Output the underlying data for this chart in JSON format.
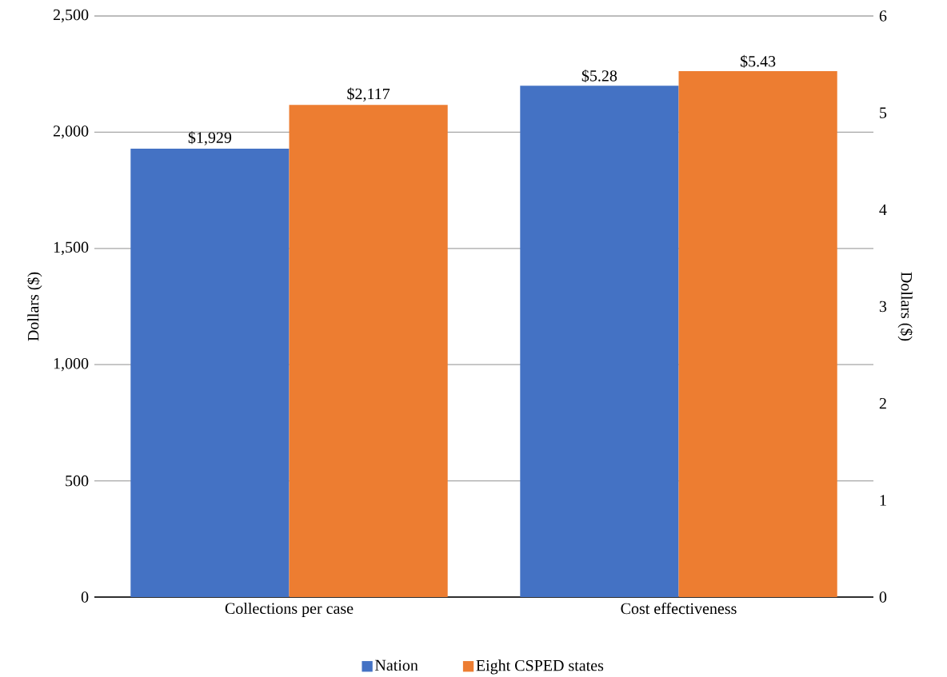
{
  "chart_data": {
    "type": "bar",
    "categories": [
      "Collections per case",
      "Cost effectiveness"
    ],
    "ylabel": "Dollars ($)",
    "y2label": "Dollars ($)",
    "ylim": [
      0,
      2500
    ],
    "yticks": [
      0,
      500,
      {
        "value": 1000,
        "label": "1,000"
      },
      {
        "value": 1500,
        "label": "1,500"
      },
      {
        "value": 2000,
        "label": "2,000"
      },
      {
        "value": 2500,
        "label": "2,500"
      }
    ],
    "y2lim": [
      0,
      6
    ],
    "y2ticks": [
      0,
      1,
      2,
      3,
      4,
      5,
      6
    ],
    "grid": "y",
    "legend": "bottom",
    "series": [
      {
        "name": "Nation",
        "color": "#4472c4",
        "values": [
          1929,
          null
        ],
        "value_labels": [
          "$1,929",
          null
        ]
      },
      {
        "name": "Eight CSPED states",
        "color": "#ed7d31",
        "values": [
          2117,
          null
        ],
        "value_labels": [
          "$2,117",
          null
        ]
      },
      {
        "color": "#4472c4",
        "axis": "y2",
        "values": [
          null,
          5.28
        ],
        "value_labels": [
          null,
          "$5.28"
        ]
      },
      {
        "color": "#ed7d31",
        "axis": "y2",
        "values": [
          null,
          5.43
        ],
        "value_labels": [
          null,
          "$5.43"
        ]
      }
    ]
  }
}
